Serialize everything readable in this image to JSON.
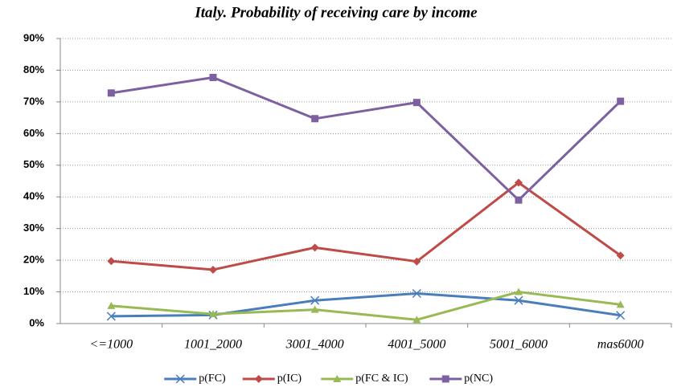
{
  "chart_data": {
    "type": "line",
    "title": "Italy. Probability of receiving care by income",
    "categories": [
      "<=1000",
      "1001_2000",
      "3001_4000",
      "4001_5000",
      "5001_6000",
      "mas6000"
    ],
    "series": [
      {
        "name": "p(FC)",
        "color": "#4a7ebb",
        "marker": "x",
        "values": [
          2.3,
          2.7,
          7.3,
          9.5,
          7.3,
          2.6
        ]
      },
      {
        "name": "p(IC)",
        "color": "#be4b48",
        "marker": "diamond",
        "values": [
          19.7,
          17.0,
          24.0,
          19.6,
          44.5,
          21.5
        ]
      },
      {
        "name": "p(FC & IC)",
        "color": "#98b954",
        "marker": "triangle",
        "values": [
          5.6,
          3.0,
          4.4,
          1.2,
          10.0,
          6.0
        ]
      },
      {
        "name": "p(NC)",
        "color": "#7d60a0",
        "marker": "square",
        "values": [
          72.8,
          77.7,
          64.7,
          69.8,
          39.0,
          70.2
        ]
      }
    ],
    "ylim": [
      0,
      90
    ],
    "yticks": [
      {
        "value": 0,
        "label": "0%"
      },
      {
        "value": 10,
        "label": "10%"
      },
      {
        "value": 20,
        "label": "20%"
      },
      {
        "value": 30,
        "label": "30%"
      },
      {
        "value": 40,
        "label": "40%"
      },
      {
        "value": 50,
        "label": "50%"
      },
      {
        "value": 60,
        "label": "60%"
      },
      {
        "value": 70,
        "label": "70%"
      },
      {
        "value": 80,
        "label": "80%"
      },
      {
        "value": 90,
        "label": "90%"
      }
    ],
    "grid": true,
    "legend": "bottom"
  }
}
